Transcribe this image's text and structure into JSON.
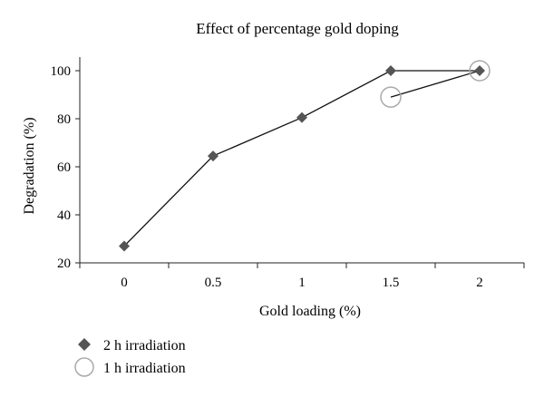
{
  "chart_data": {
    "type": "line",
    "title": "Effect of percentage gold doping",
    "xlabel": "Gold loading (%)",
    "ylabel": "Degradation (%)",
    "categories": [
      "0",
      "0.5",
      "1",
      "1.5",
      "2"
    ],
    "ylim": [
      20,
      100
    ],
    "yticks": [
      "20",
      "40",
      "60",
      "80",
      "100"
    ],
    "grid": false,
    "legend_position": "bottom-left",
    "series": [
      {
        "name": "2 h irradiation",
        "marker": "diamond",
        "color": "#555555",
        "points": [
          {
            "x": "0",
            "y": 27
          },
          {
            "x": "0.5",
            "y": 64.5
          },
          {
            "x": "1",
            "y": 80.5
          },
          {
            "x": "1.5",
            "y": 100
          },
          {
            "x": "2",
            "y": 100
          }
        ]
      },
      {
        "name": "1 h irradiation",
        "marker": "circle",
        "color": "#aaaaaa",
        "points": [
          {
            "x": "1.5",
            "y": 89
          },
          {
            "x": "2",
            "y": 100
          }
        ]
      }
    ]
  }
}
